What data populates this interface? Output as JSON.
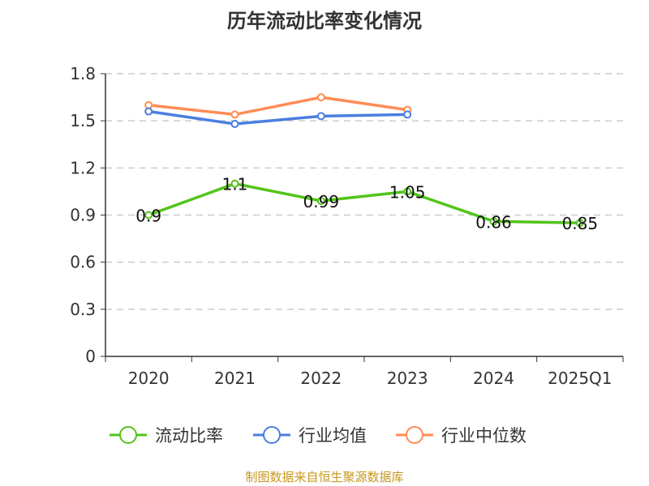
{
  "chart_data": {
    "type": "line",
    "title": "历年流动比率变化情况",
    "categories": [
      "2020",
      "2021",
      "2022",
      "2023",
      "2024",
      "2025Q1"
    ],
    "ylim": [
      0,
      1.8
    ],
    "yticks": [
      "0",
      "0.3",
      "0.6",
      "0.9",
      "1.2",
      "1.5",
      "1.8"
    ],
    "grid": true,
    "legend_position": "bottom",
    "series": [
      {
        "name": "流动比率",
        "color": "#52c41a",
        "values": [
          0.9,
          1.1,
          0.99,
          1.05,
          0.86,
          0.85
        ],
        "labels": [
          "0.9",
          "1.1",
          "0.99",
          "1.05",
          "0.86",
          "0.85"
        ]
      },
      {
        "name": "行业均值",
        "color": "#4a7ee0",
        "values": [
          1.56,
          1.48,
          1.53,
          1.54,
          null,
          null
        ]
      },
      {
        "name": "行业中位数",
        "color": "#ff8c55",
        "values": [
          1.6,
          1.54,
          1.65,
          1.57,
          null,
          null
        ]
      }
    ]
  },
  "source": "制图数据来自恒生聚源数据库"
}
